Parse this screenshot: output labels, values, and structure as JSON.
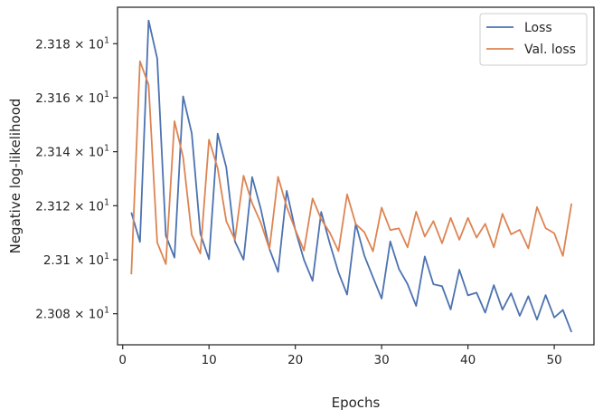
{
  "chart_data": {
    "type": "line",
    "title": "",
    "xlabel": "Epochs",
    "ylabel": "Negative log-likelihood",
    "xlim": [
      -0.6,
      54.6
    ],
    "ylim": [
      23.0685,
      23.1935
    ],
    "x_ticks": [
      0,
      10,
      20,
      30,
      40,
      50
    ],
    "x_tick_labels": [
      "0",
      "10",
      "20",
      "30",
      "40",
      "50"
    ],
    "y_ticks": [
      23.08,
      23.1,
      23.12,
      23.14,
      23.16,
      23.18
    ],
    "y_tick_labels": [
      {
        "mantissa": "2.308",
        "exp": "1"
      },
      {
        "mantissa": "2.31",
        "exp": "1"
      },
      {
        "mantissa": "2.312",
        "exp": "1"
      },
      {
        "mantissa": "2.314",
        "exp": "1"
      },
      {
        "mantissa": "2.316",
        "exp": "1"
      },
      {
        "mantissa": "2.318",
        "exp": "1"
      }
    ],
    "y_tick_mult": "× 10",
    "grid": false,
    "legend_position": "top-right",
    "x": [
      1,
      2,
      3,
      4,
      5,
      6,
      7,
      8,
      9,
      10,
      11,
      12,
      13,
      14,
      15,
      16,
      17,
      18,
      19,
      20,
      21,
      22,
      23,
      24,
      25,
      26,
      27,
      28,
      29,
      30,
      31,
      32,
      33,
      34,
      35,
      36,
      37,
      38,
      39,
      40,
      41,
      42,
      43,
      44,
      45,
      46,
      47,
      48,
      49,
      50,
      51,
      52
    ],
    "series": [
      {
        "name": "Loss",
        "color": "#4c72b0",
        "values": [
          23.1175,
          23.1066,
          23.1886,
          23.1745,
          23.1089,
          23.1008,
          23.1605,
          23.1468,
          23.1096,
          23.1002,
          23.1467,
          23.1342,
          23.1068,
          23.1,
          23.1306,
          23.1188,
          23.104,
          23.0955,
          23.1255,
          23.111,
          23.1,
          23.0922,
          23.1177,
          23.106,
          23.0953,
          23.0871,
          23.1133,
          23.1015,
          23.0935,
          23.0856,
          23.1068,
          23.0966,
          23.091,
          23.0829,
          23.1012,
          23.0909,
          23.0902,
          23.0816,
          23.0963,
          23.0868,
          23.0878,
          23.0804,
          23.0906,
          23.0815,
          23.0876,
          23.0792,
          23.0865,
          23.0778,
          23.0869,
          23.0786,
          23.0814,
          23.0732
        ]
      },
      {
        "name": "Val. loss",
        "color": "#dd8452",
        "values": [
          23.0946,
          23.1735,
          23.1648,
          23.1064,
          23.0984,
          23.1513,
          23.138,
          23.1092,
          23.1023,
          23.1445,
          23.1339,
          23.1143,
          23.1074,
          23.1311,
          23.1209,
          23.1137,
          23.104,
          23.1307,
          23.1196,
          23.1111,
          23.1034,
          23.1227,
          23.115,
          23.11,
          23.1032,
          23.1242,
          23.1132,
          23.1102,
          23.1031,
          23.1193,
          23.111,
          23.1116,
          23.1046,
          23.1178,
          23.1086,
          23.1143,
          23.1061,
          23.1155,
          23.1074,
          23.1155,
          23.1082,
          23.1133,
          23.1046,
          23.117,
          23.1094,
          23.1111,
          23.1042,
          23.1195,
          23.1117,
          23.1098,
          23.1014,
          23.1208
        ]
      }
    ]
  }
}
